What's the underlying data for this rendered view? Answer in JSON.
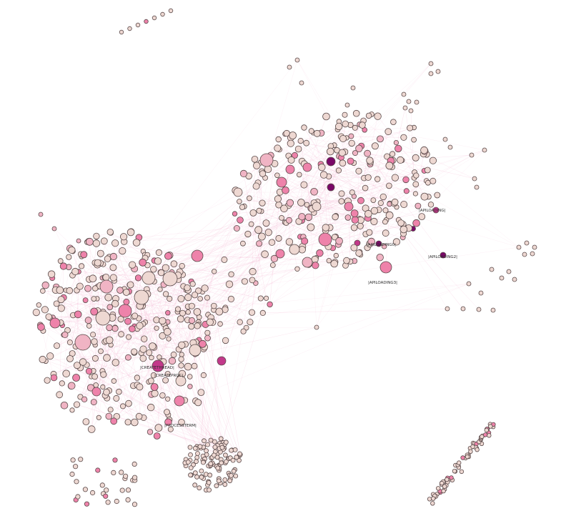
{
  "colors": {
    "background": "#ffffff",
    "edge": "#f2a6c8",
    "node_default": "#eed8d2",
    "node_light_pink": "#f0b4c4",
    "node_pink": "#ee82aa",
    "node_magenta": "#c2388a",
    "node_purple": "#7a0868",
    "node_stroke": "#5a4a4a"
  },
  "labels": [
    {
      "id": "api-loading-1",
      "text": "|APILOADING|"
    },
    {
      "id": "api-loading-0",
      "text": "|APILOADING0|"
    },
    {
      "id": "api-loading-2",
      "text": "|APILOADING2|"
    },
    {
      "id": "api-loading-3",
      "text": "|APILOADING3|"
    },
    {
      "id": "create-thread",
      "text": "|CREATETHREAD|"
    },
    {
      "id": "create-proc",
      "text": "|CREATEPROC|"
    },
    {
      "id": "process-term",
      "text": "|PROCESSTERM|"
    }
  ]
}
